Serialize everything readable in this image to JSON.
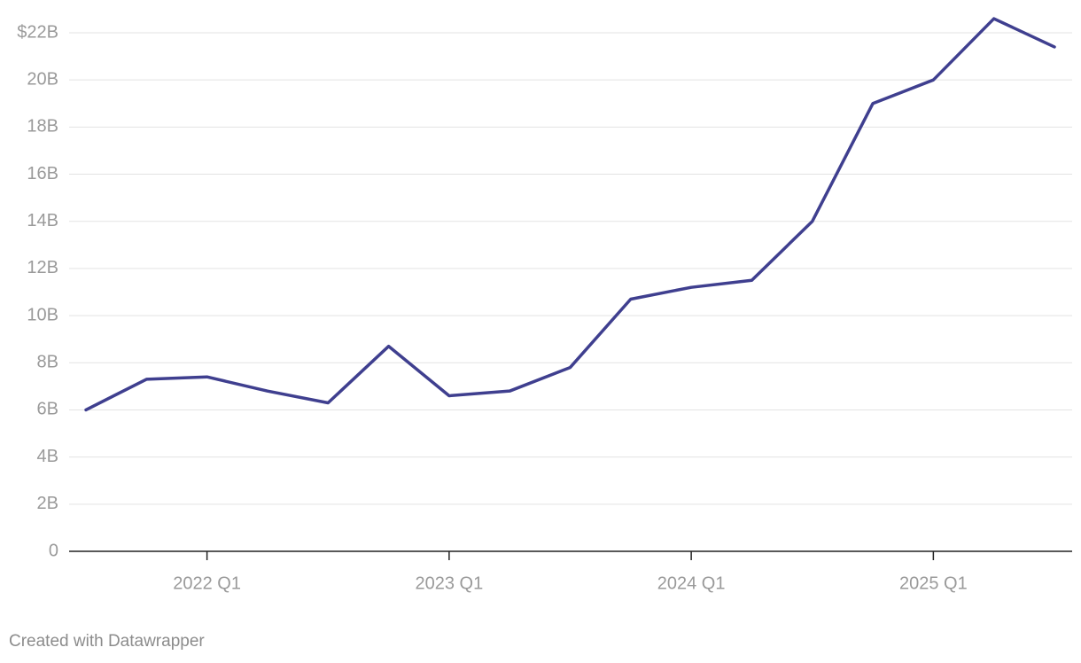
{
  "chart_data": {
    "type": "line",
    "categories": [
      null,
      null,
      "2022 Q1",
      null,
      null,
      null,
      "2023 Q1",
      null,
      null,
      null,
      "2024 Q1",
      null,
      null,
      null,
      "2025 Q1",
      null,
      null
    ],
    "series": [
      {
        "color": "#3f3f8f",
        "values": [
          6.0,
          7.3,
          7.4,
          6.8,
          6.3,
          8.7,
          6.6,
          6.8,
          7.8,
          10.7,
          11.2,
          11.5,
          14.0,
          19.0,
          20.0,
          22.6,
          21.4
        ]
      }
    ],
    "ylim": [
      0,
      22
    ],
    "yticks": [
      0,
      {
        "value": 2,
        "label": "2B"
      },
      {
        "value": 4,
        "label": "4B"
      },
      {
        "value": 6,
        "label": "6B"
      },
      {
        "value": 8,
        "label": "8B"
      },
      {
        "value": 10,
        "label": "10B"
      },
      {
        "value": 12,
        "label": "12B"
      },
      {
        "value": 14,
        "label": "14B"
      },
      {
        "value": 16,
        "label": "16B"
      },
      {
        "value": 18,
        "label": "18B"
      },
      {
        "value": 20,
        "label": "20B"
      },
      {
        "value": 22,
        "label": "$22B"
      }
    ],
    "grid": true,
    "footer": "Created with Datawrapper"
  }
}
